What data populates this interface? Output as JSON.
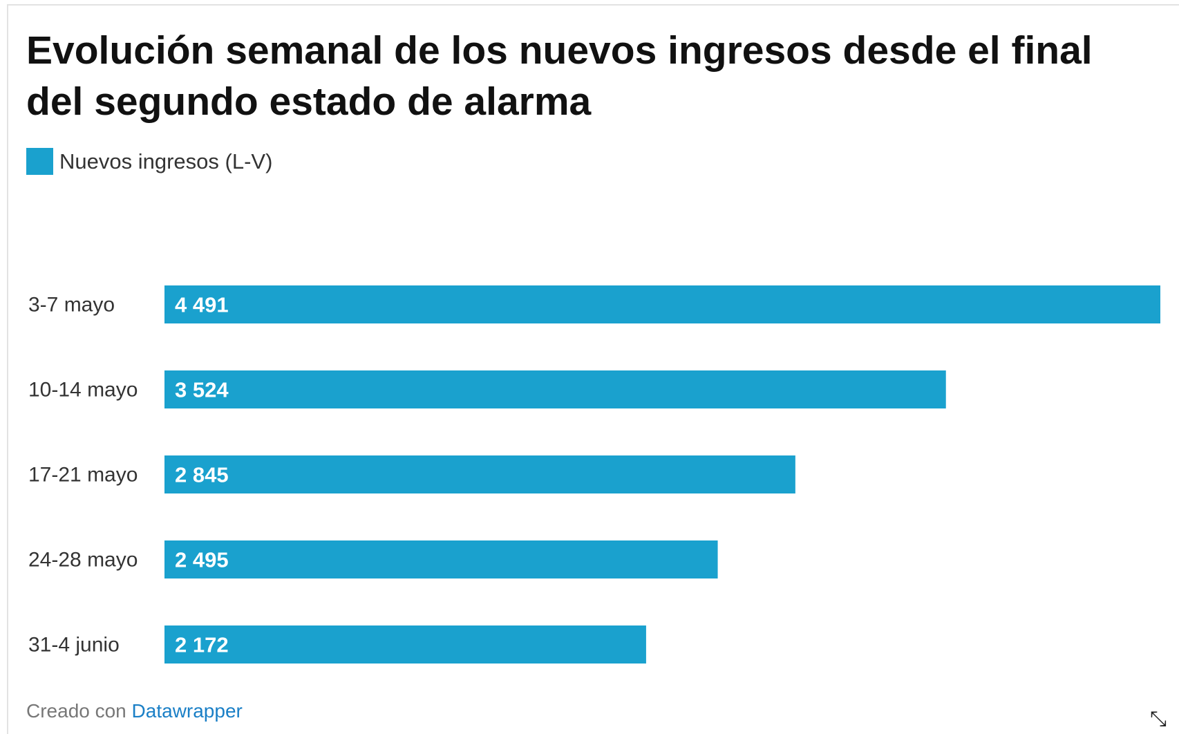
{
  "chart_data": {
    "type": "bar",
    "orientation": "horizontal",
    "title": "Evolución semanal de los nuevos ingresos desde el final del segundo estado de alarma",
    "categories": [
      "3-7 mayo",
      "10-14 mayo",
      "17-21 mayo",
      "24-28 mayo",
      "31-4 junio"
    ],
    "series": [
      {
        "name": "Nuevos ingresos (L-V)",
        "values": [
          4491,
          3524,
          2845,
          2495,
          2172
        ],
        "labels": [
          "4 491",
          "3 524",
          "2 845",
          "2 495",
          "2 172"
        ],
        "color": "#1aa1ce"
      }
    ],
    "xlim": [
      0,
      4491
    ],
    "grid": false,
    "legend": "top-left"
  },
  "footer": {
    "prefix": "Creado con ",
    "link": "Datawrapper"
  },
  "icons": {
    "resize": "resize-arrow-icon"
  }
}
